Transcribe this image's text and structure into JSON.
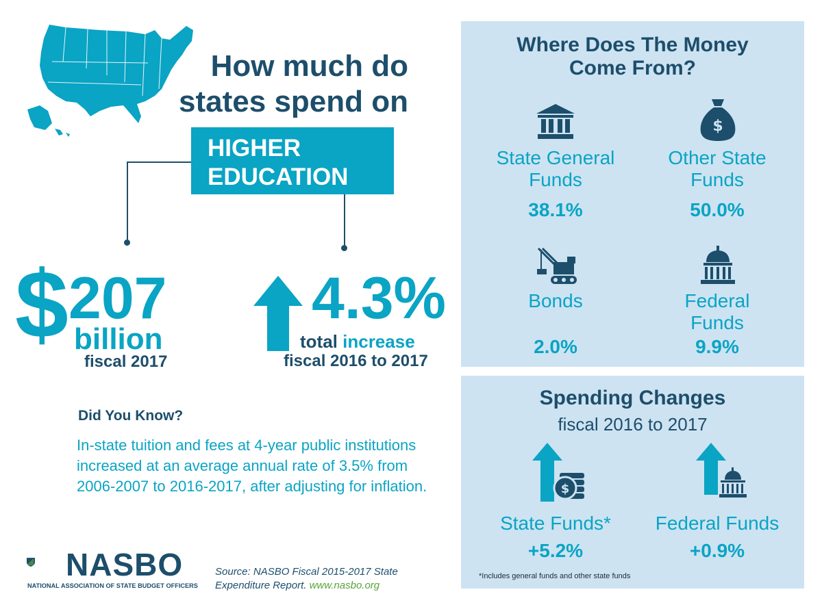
{
  "title": {
    "line1": "How much do",
    "line2": "states spend on",
    "highlight_line1": "HIGHER",
    "highlight_line2": "EDUCATION"
  },
  "spending": {
    "currency": "$",
    "amount": "207",
    "unit": "billion",
    "period": "fiscal 2017"
  },
  "increase": {
    "value": "4.3%",
    "label_total": "total",
    "label_increase": "increase",
    "period": "fiscal 2016 to 2017"
  },
  "did_you_know": {
    "title": "Did You Know?",
    "body": "In-state tuition and fees at 4-year public institutions increased at an average annual rate of 3.5% from 2006-2007 to 2016-2017, after adjusting for inflation."
  },
  "logo": {
    "name": "NASBO",
    "subtitle": "NATIONAL ASSOCIATION OF STATE BUDGET OFFICERS"
  },
  "source": {
    "text": "Source: NASBO Fiscal 2015-2017 State Expenditure Report.",
    "url": "www.nasbo.org"
  },
  "money_sources": {
    "title_line1": "Where Does The Money",
    "title_line2": "Come From?",
    "items": [
      {
        "label_line1": "State General",
        "label_line2": "Funds",
        "value": "38.1%",
        "icon": "bank-icon"
      },
      {
        "label_line1": "Other State",
        "label_line2": "Funds",
        "value": "50.0%",
        "icon": "money-bag-icon"
      },
      {
        "label_line1": "Bonds",
        "label_line2": "",
        "value": "2.0%",
        "icon": "crane-icon"
      },
      {
        "label_line1": "Federal",
        "label_line2": "Funds",
        "value": "9.9%",
        "icon": "capitol-icon"
      }
    ]
  },
  "spending_changes": {
    "title": "Spending Changes",
    "subtitle": "fiscal 2016 to 2017",
    "items": [
      {
        "label": "State Funds*",
        "value": "+5.2%",
        "icon": "coins-arrow-icon"
      },
      {
        "label": "Federal Funds",
        "value": "+0.9%",
        "icon": "capitol-arrow-icon"
      }
    ],
    "footnote": "*Includes general funds and other state funds"
  },
  "colors": {
    "teal": "#0aa4c4",
    "navy": "#1d4e6b",
    "panel": "#cde3f2",
    "logo_green": "#5aa43b"
  }
}
